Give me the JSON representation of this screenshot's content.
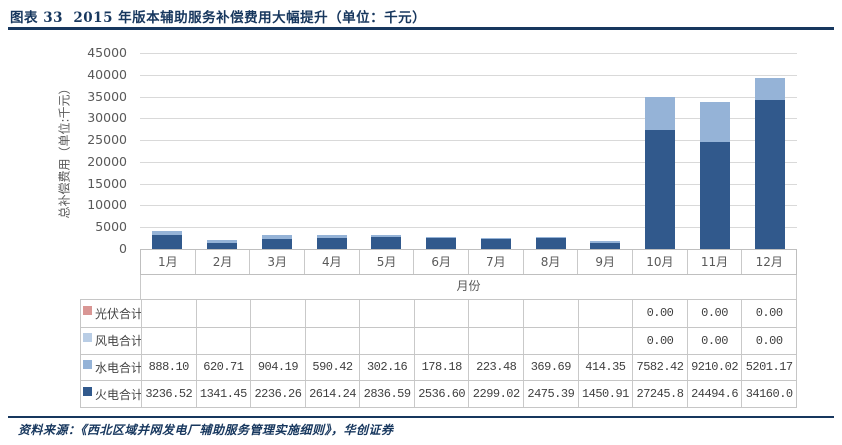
{
  "header": {
    "title": "图表 33  2015 年版本辅助服务补偿费用大幅提升（单位：千元）",
    "accent_color": "#17375E"
  },
  "footer": {
    "source": "资料来源：《西北区域并网发电厂辅助服务管理实施细则》，华创证券"
  },
  "chart_data": {
    "type": "bar",
    "stacked": true,
    "title": "2015 年版本辅助服务补偿费用大幅提升（单位：千元）",
    "xlabel": "月份",
    "ylabel": "总补偿费用（单位:千元）",
    "ylim": [
      0,
      45000
    ],
    "ytick_step": 5000,
    "grid": true,
    "gridline_color": "#D9D9D9",
    "legend_position": "data-table-left",
    "categories": [
      "1月",
      "2月",
      "3月",
      "4月",
      "5月",
      "6月",
      "7月",
      "8月",
      "9月",
      "10月",
      "11月",
      "12月"
    ],
    "series": [
      {
        "key": "solar",
        "name": "光伏合计",
        "color": "#D99694",
        "values": [
          null,
          null,
          null,
          null,
          null,
          null,
          null,
          null,
          null,
          0,
          0,
          0
        ],
        "display": [
          "",
          "",
          "",
          "",
          "",
          "",
          "",
          "",
          "",
          "0.00",
          "0.00",
          "0.00"
        ]
      },
      {
        "key": "wind",
        "name": "风电合计",
        "color": "#B9CDE5",
        "values": [
          null,
          null,
          null,
          null,
          null,
          null,
          null,
          null,
          null,
          0,
          0,
          0
        ],
        "display": [
          "",
          "",
          "",
          "",
          "",
          "",
          "",
          "",
          "",
          "0.00",
          "0.00",
          "0.00"
        ]
      },
      {
        "key": "hydro",
        "name": "水电合计",
        "color": "#95B3D7",
        "values": [
          888.1,
          620.71,
          904.19,
          590.42,
          302.16,
          178.18,
          223.48,
          369.69,
          414.35,
          7582.42,
          9210.02,
          5201.17
        ],
        "display": [
          "888.10",
          "620.71",
          "904.19",
          "590.42",
          "302.16",
          "178.18",
          "223.48",
          "369.69",
          "414.35",
          "7582.42",
          "9210.02",
          "5201.17"
        ]
      },
      {
        "key": "thermal",
        "name": "火电合计",
        "color": "#31598C",
        "values": [
          3236.52,
          1341.45,
          2236.26,
          2614.24,
          2836.59,
          2536.6,
          2299.02,
          2475.39,
          1450.91,
          27245.8,
          24494.6,
          34160.0
        ],
        "display": [
          "3236.52",
          "1341.45",
          "2236.26",
          "2614.24",
          "2836.59",
          "2536.60",
          "2299.02",
          "2475.39",
          "1450.91",
          "27245.8",
          "24494.6",
          "34160.0"
        ]
      }
    ],
    "stack_order_bottom_to_top": [
      "thermal",
      "hydro",
      "wind",
      "solar"
    ]
  }
}
